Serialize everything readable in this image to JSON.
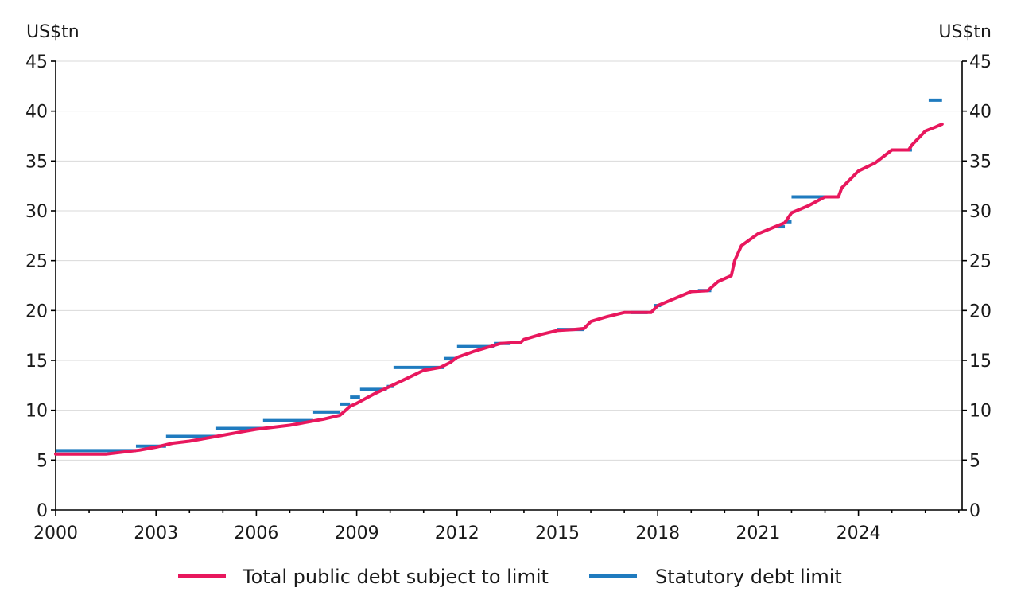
{
  "chart_data": {
    "type": "line",
    "ylabel_left": "US$tn",
    "ylabel_right": "US$tn",
    "ylim": [
      0,
      45
    ],
    "xlim": [
      2000,
      2027.1
    ],
    "y_ticks": [
      0,
      5,
      10,
      15,
      20,
      25,
      30,
      35,
      40,
      45
    ],
    "x_ticks": [
      2000,
      2003,
      2006,
      2009,
      2012,
      2015,
      2018,
      2021,
      2024
    ],
    "grid": true,
    "legend_position": "bottom",
    "colors": {
      "debt": "#e8175d",
      "limit": "#1f7bbf"
    },
    "series": [
      {
        "name": "Total public debt subject to limit",
        "kind": "line",
        "points": [
          [
            2000.0,
            5.6
          ],
          [
            2000.5,
            5.6
          ],
          [
            2001.0,
            5.6
          ],
          [
            2001.5,
            5.6
          ],
          [
            2002.0,
            5.8
          ],
          [
            2002.5,
            6.0
          ],
          [
            2003.0,
            6.3
          ],
          [
            2003.5,
            6.7
          ],
          [
            2004.0,
            6.9
          ],
          [
            2004.5,
            7.2
          ],
          [
            2005.0,
            7.5
          ],
          [
            2005.5,
            7.8
          ],
          [
            2006.0,
            8.1
          ],
          [
            2006.5,
            8.3
          ],
          [
            2007.0,
            8.5
          ],
          [
            2007.5,
            8.8
          ],
          [
            2008.0,
            9.1
          ],
          [
            2008.5,
            9.5
          ],
          [
            2008.8,
            10.4
          ],
          [
            2009.0,
            10.7
          ],
          [
            2009.5,
            11.6
          ],
          [
            2010.0,
            12.4
          ],
          [
            2010.5,
            13.2
          ],
          [
            2011.0,
            14.0
          ],
          [
            2011.5,
            14.3
          ],
          [
            2011.8,
            14.8
          ],
          [
            2012.0,
            15.3
          ],
          [
            2012.5,
            15.9
          ],
          [
            2013.0,
            16.4
          ],
          [
            2013.3,
            16.7
          ],
          [
            2013.9,
            16.8
          ],
          [
            2014.0,
            17.1
          ],
          [
            2014.5,
            17.6
          ],
          [
            2015.0,
            18.0
          ],
          [
            2015.5,
            18.1
          ],
          [
            2015.8,
            18.2
          ],
          [
            2016.0,
            18.9
          ],
          [
            2016.5,
            19.4
          ],
          [
            2017.0,
            19.8
          ],
          [
            2017.5,
            19.8
          ],
          [
            2017.8,
            19.8
          ],
          [
            2018.0,
            20.5
          ],
          [
            2018.5,
            21.2
          ],
          [
            2019.0,
            21.9
          ],
          [
            2019.5,
            22.0
          ],
          [
            2019.8,
            22.9
          ],
          [
            2020.2,
            23.5
          ],
          [
            2020.3,
            25.0
          ],
          [
            2020.5,
            26.5
          ],
          [
            2021.0,
            27.7
          ],
          [
            2021.5,
            28.4
          ],
          [
            2021.8,
            28.8
          ],
          [
            2022.0,
            29.8
          ],
          [
            2022.5,
            30.5
          ],
          [
            2023.0,
            31.4
          ],
          [
            2023.4,
            31.4
          ],
          [
            2023.5,
            32.3
          ],
          [
            2024.0,
            34.0
          ],
          [
            2024.5,
            34.8
          ],
          [
            2025.0,
            36.1
          ],
          [
            2025.5,
            36.1
          ],
          [
            2025.6,
            36.6
          ],
          [
            2026.0,
            38.0
          ],
          [
            2026.3,
            38.4
          ],
          [
            2026.5,
            38.7
          ]
        ]
      },
      {
        "name": "Statutory debt limit",
        "kind": "steps",
        "segments": [
          [
            2000.0,
            2002.4,
            5.95
          ],
          [
            2002.4,
            2003.3,
            6.4
          ],
          [
            2003.3,
            2004.8,
            7.38
          ],
          [
            2004.8,
            2006.2,
            8.18
          ],
          [
            2006.2,
            2007.7,
            8.97
          ],
          [
            2007.7,
            2008.5,
            9.82
          ],
          [
            2008.5,
            2008.8,
            10.62
          ],
          [
            2008.8,
            2009.1,
            11.32
          ],
          [
            2009.1,
            2009.9,
            12.1
          ],
          [
            2009.9,
            2010.1,
            12.39
          ],
          [
            2010.1,
            2011.6,
            14.29
          ],
          [
            2011.6,
            2012.0,
            15.19
          ],
          [
            2012.0,
            2013.1,
            16.39
          ],
          [
            2013.1,
            2013.6,
            16.7
          ],
          [
            2015.0,
            2015.8,
            18.1
          ],
          [
            2017.2,
            2017.7,
            19.8
          ],
          [
            2017.9,
            2018.1,
            20.5
          ],
          [
            2019.2,
            2019.6,
            22.0
          ],
          [
            2021.6,
            2021.8,
            28.4
          ],
          [
            2021.8,
            2022.0,
            28.9
          ],
          [
            2022.0,
            2023.4,
            31.4
          ],
          [
            2025.0,
            2025.6,
            36.1
          ],
          [
            2026.1,
            2026.5,
            41.1
          ]
        ]
      }
    ]
  }
}
